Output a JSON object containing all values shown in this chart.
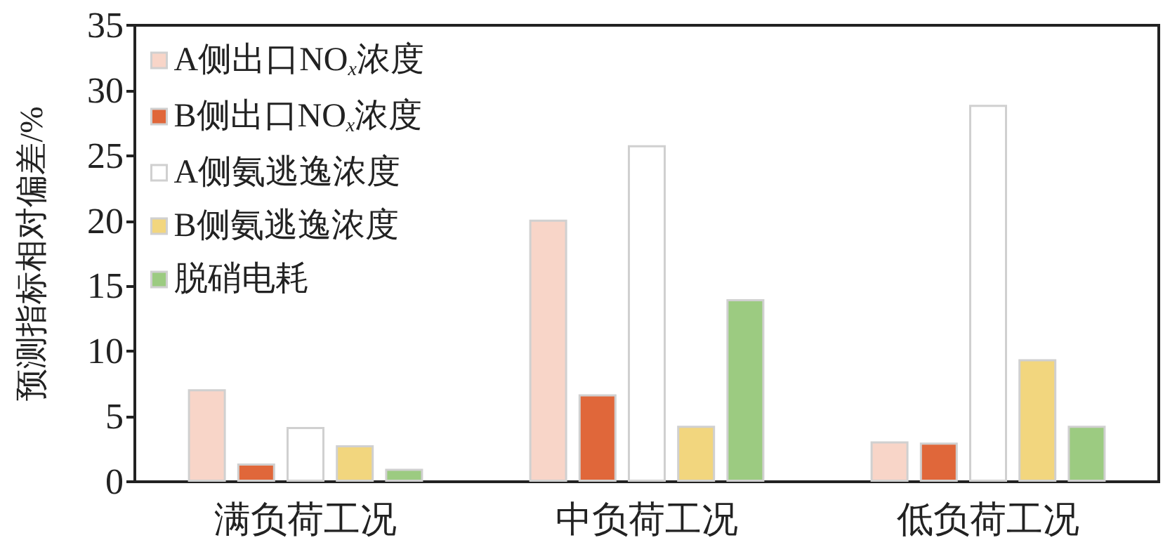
{
  "chart_data": {
    "type": "bar",
    "ylabel": "预测指标相对偏差/%",
    "categories": [
      "满负荷工况",
      "中负荷工况",
      "低负荷工况"
    ],
    "series": [
      {
        "name": "A侧出口NO$_{x}$浓度",
        "color": "#f8d5c8",
        "values": [
          7.1,
          20.1,
          3.1
        ]
      },
      {
        "name": "B侧出口NO$_{x}$浓度",
        "color": "#e0673a",
        "values": [
          1.4,
          6.7,
          3.0
        ]
      },
      {
        "name": "A侧氨逃逸浓度",
        "color": "#ffffff",
        "values": [
          4.2,
          25.8,
          28.9
        ]
      },
      {
        "name": "B侧氨逃逸浓度",
        "color": "#f2d67e",
        "values": [
          2.8,
          4.3,
          9.4
        ]
      },
      {
        "name": "脱硝电耗",
        "color": "#9ccb81",
        "values": [
          1.0,
          14.0,
          4.3
        ]
      }
    ],
    "ylim": [
      0,
      35
    ],
    "yticks": [
      0,
      5,
      10,
      15,
      20,
      25,
      30,
      35
    ],
    "grid": false,
    "legend": "top left"
  }
}
